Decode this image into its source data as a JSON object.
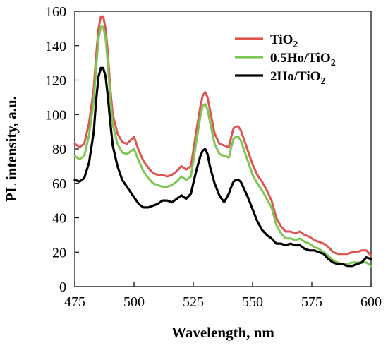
{
  "chart_data": {
    "type": "line",
    "title": "",
    "xlabel": "Wavelength, nm",
    "ylabel": "PL intensity, a.u.",
    "xlim": [
      475,
      600
    ],
    "ylim": [
      0,
      160
    ],
    "xticks": [
      475,
      500,
      525,
      550,
      575,
      600
    ],
    "yticks": [
      0,
      20,
      40,
      60,
      80,
      100,
      120,
      140,
      160
    ],
    "grid": false,
    "legend_position": "top-right",
    "series": [
      {
        "name": "TiO2",
        "legend_main": "TiO",
        "legend_sub": "2",
        "color": "#e0544f",
        "x": [
          475,
          477,
          479,
          481,
          483,
          484,
          485,
          486,
          487,
          488,
          489,
          490,
          491,
          493,
          495,
          497,
          500,
          502,
          504,
          506,
          508,
          510,
          512,
          514,
          516,
          518,
          520,
          522,
          524,
          526,
          528,
          529,
          530,
          531,
          532,
          534,
          536,
          538,
          540,
          541,
          542,
          543,
          544,
          545,
          546,
          548,
          550,
          552,
          554,
          556,
          558,
          560,
          562,
          564,
          566,
          568,
          570,
          572,
          574,
          576,
          578,
          580,
          582,
          584,
          586,
          588,
          590,
          592,
          594,
          596,
          598,
          600
        ],
        "values": [
          83,
          81,
          83,
          95,
          115,
          134,
          150,
          157,
          157,
          150,
          135,
          115,
          100,
          89,
          84,
          83,
          87,
          79,
          73,
          69,
          66,
          65,
          65,
          64,
          65,
          67,
          70,
          68,
          70,
          88,
          105,
          111,
          113,
          110,
          103,
          89,
          83,
          82,
          81,
          87,
          92,
          93,
          93,
          91,
          87,
          79,
          71,
          65,
          61,
          56,
          50,
          40,
          35,
          32,
          32,
          31,
          32,
          30,
          29,
          27,
          26,
          25,
          23,
          20,
          19,
          19,
          19,
          20,
          20,
          21,
          21,
          18
        ]
      },
      {
        "name": "0.5Ho/TiO2",
        "legend_main": "0.5Ho/TiO",
        "legend_sub": "2",
        "color": "#7dc654",
        "x": [
          475,
          477,
          479,
          481,
          483,
          484,
          485,
          486,
          487,
          488,
          489,
          490,
          491,
          493,
          495,
          497,
          500,
          502,
          504,
          506,
          508,
          510,
          512,
          514,
          516,
          518,
          520,
          522,
          524,
          526,
          528,
          529,
          530,
          531,
          532,
          534,
          536,
          538,
          540,
          541,
          542,
          543,
          544,
          545,
          546,
          548,
          550,
          552,
          554,
          556,
          558,
          560,
          562,
          564,
          566,
          568,
          570,
          572,
          574,
          576,
          578,
          580,
          582,
          584,
          586,
          588,
          590,
          592,
          594,
          596,
          598,
          600
        ],
        "values": [
          76,
          74,
          76,
          88,
          108,
          127,
          144,
          151,
          151,
          144,
          129,
          109,
          94,
          83,
          78,
          77,
          80,
          73,
          67,
          63,
          60,
          59,
          58,
          58,
          59,
          61,
          64,
          62,
          64,
          82,
          99,
          105,
          106,
          103,
          96,
          83,
          77,
          76,
          75,
          81,
          86,
          87,
          87,
          85,
          81,
          73,
          65,
          60,
          56,
          51,
          46,
          36,
          31,
          28,
          28,
          27,
          28,
          26,
          25,
          23,
          22,
          20,
          18,
          15,
          14,
          13,
          13,
          14,
          14,
          14,
          14,
          12
        ]
      },
      {
        "name": "2Ho/TiO2",
        "legend_main": "2Ho/TiO",
        "legend_sub": "2",
        "color": "#000000",
        "x": [
          475,
          477,
          479,
          481,
          483,
          484,
          485,
          486,
          487,
          488,
          489,
          490,
          491,
          493,
          495,
          497,
          500,
          502,
          504,
          506,
          508,
          510,
          512,
          514,
          516,
          518,
          520,
          522,
          524,
          526,
          528,
          529,
          530,
          531,
          532,
          534,
          536,
          538,
          540,
          541,
          542,
          543,
          544,
          545,
          546,
          548,
          550,
          552,
          554,
          556,
          558,
          560,
          562,
          564,
          566,
          568,
          570,
          572,
          574,
          576,
          578,
          580,
          582,
          584,
          586,
          588,
          590,
          592,
          594,
          596,
          598,
          600
        ],
        "values": [
          62,
          61,
          63,
          72,
          90,
          108,
          122,
          127,
          127,
          122,
          110,
          95,
          82,
          70,
          62,
          58,
          52,
          48,
          46,
          46,
          47,
          48,
          50,
          50,
          49,
          51,
          53,
          51,
          54,
          66,
          76,
          79,
          80,
          77,
          70,
          60,
          53,
          49,
          54,
          58,
          61,
          62,
          62,
          61,
          58,
          52,
          45,
          38,
          33,
          30,
          28,
          25,
          25,
          24,
          25,
          24,
          24,
          22,
          21,
          21,
          20,
          19,
          16,
          14,
          13,
          13,
          12,
          12,
          13,
          14,
          17,
          16
        ]
      }
    ]
  }
}
